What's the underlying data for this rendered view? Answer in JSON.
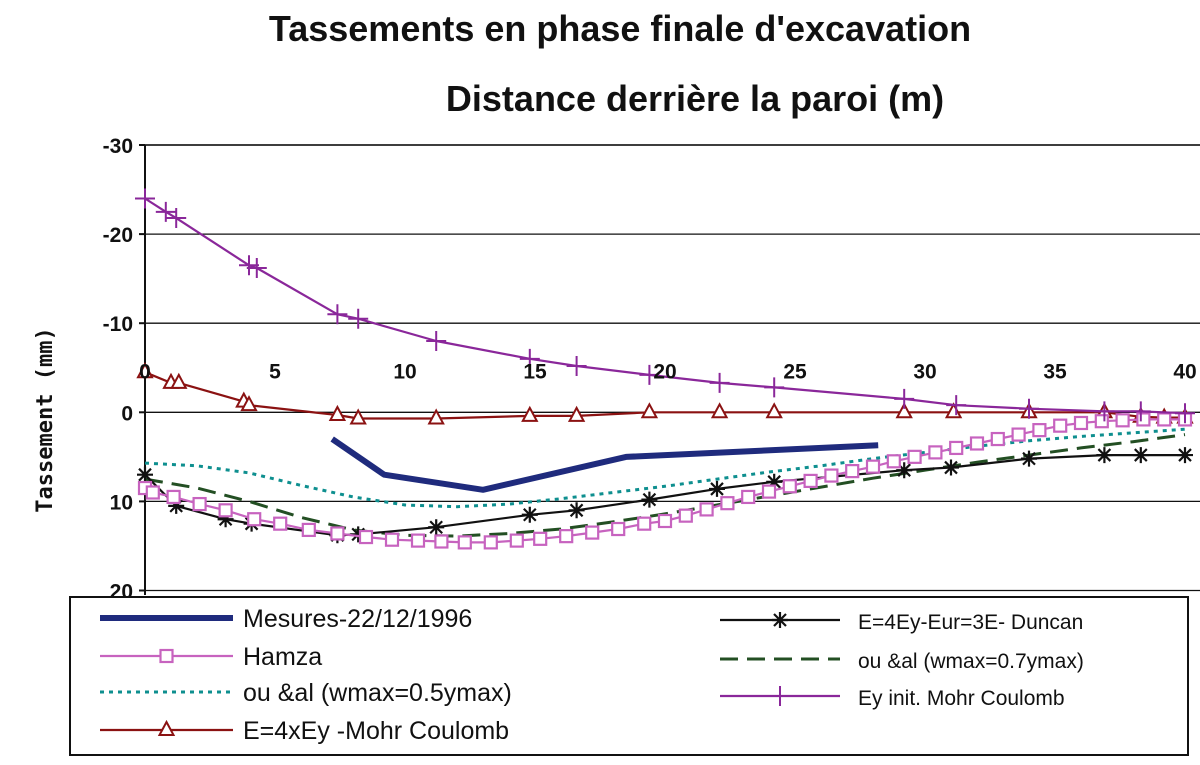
{
  "chart_data": {
    "type": "line",
    "title": "Tassements en phase finale  d'excavation",
    "subtitle": "Distance derrière la paroi (m)",
    "xlabel": "Distance derrière la paroi (m)",
    "ylabel": "Tassement (mm)",
    "xlim": [
      0,
      40
    ],
    "ylim": [
      -30,
      20
    ],
    "y_inverted": true,
    "x_ticks": [
      "0",
      "5",
      "10",
      "15",
      "20",
      "25",
      "30",
      "35",
      "40"
    ],
    "y_ticks": [
      "-30",
      "-20",
      "-10",
      "0",
      "10",
      "20"
    ],
    "grid": "horizontal",
    "legend_position": "bottom",
    "series": [
      {
        "name": "Mesures-22/12/1996",
        "color": "#1f2b7d",
        "style": "thick",
        "marker": "none",
        "points": [
          [
            7.2,
            3
          ],
          [
            9.2,
            7
          ],
          [
            13,
            8.7
          ],
          [
            18.5,
            5
          ],
          [
            28.2,
            3.7
          ]
        ]
      },
      {
        "name": "Hamza",
        "color": "#c763bf",
        "style": "solid",
        "marker": "square",
        "points": [
          [
            0,
            8.5
          ],
          [
            0.3,
            9
          ],
          [
            1.1,
            9.5
          ],
          [
            2.1,
            10.3
          ],
          [
            3.1,
            11
          ],
          [
            4.2,
            12
          ],
          [
            5.2,
            12.5
          ],
          [
            6.3,
            13.2
          ],
          [
            7.4,
            13.6
          ],
          [
            8.5,
            14
          ],
          [
            9.5,
            14.3
          ],
          [
            10.5,
            14.4
          ],
          [
            11.4,
            14.5
          ],
          [
            12.3,
            14.6
          ],
          [
            13.3,
            14.6
          ],
          [
            14.3,
            14.4
          ],
          [
            15.2,
            14.2
          ],
          [
            16.2,
            13.9
          ],
          [
            17.2,
            13.5
          ],
          [
            18.2,
            13.1
          ],
          [
            19.2,
            12.5
          ],
          [
            20,
            12.2
          ],
          [
            20.8,
            11.6
          ],
          [
            21.6,
            10.9
          ],
          [
            22.4,
            10.2
          ],
          [
            23.2,
            9.5
          ],
          [
            24,
            8.9
          ],
          [
            24.8,
            8.3
          ],
          [
            25.6,
            7.7
          ],
          [
            26.4,
            7.1
          ],
          [
            27.2,
            6.6
          ],
          [
            28,
            6.1
          ],
          [
            28.8,
            5.5
          ],
          [
            29.6,
            5
          ],
          [
            30.4,
            4.5
          ],
          [
            31.2,
            4
          ],
          [
            32,
            3.5
          ],
          [
            32.8,
            3
          ],
          [
            33.6,
            2.5
          ],
          [
            34.4,
            2
          ],
          [
            35.2,
            1.5
          ],
          [
            36,
            1.2
          ],
          [
            36.8,
            1
          ],
          [
            37.6,
            0.9
          ],
          [
            38.4,
            0.8
          ],
          [
            39.2,
            0.8
          ],
          [
            40,
            0.8
          ]
        ]
      },
      {
        "name": "ou &al (wmax=0.5ymax)",
        "color": "#0e8f8f",
        "style": "dotted",
        "marker": "none",
        "points": [
          [
            0,
            5.7
          ],
          [
            2,
            6
          ],
          [
            4,
            6.8
          ],
          [
            6,
            8.2
          ],
          [
            8,
            9.5
          ],
          [
            10,
            10.4
          ],
          [
            12,
            10.6
          ],
          [
            14,
            10.3
          ],
          [
            16,
            9.7
          ],
          [
            18,
            9
          ],
          [
            20,
            8.3
          ],
          [
            22,
            7.5
          ],
          [
            24,
            6.7
          ],
          [
            26,
            6
          ],
          [
            28,
            5.2
          ],
          [
            30,
            4.5
          ],
          [
            32,
            3.8
          ],
          [
            34,
            3.2
          ],
          [
            36,
            2.7
          ],
          [
            38,
            2.3
          ],
          [
            40,
            1.9
          ]
        ]
      },
      {
        "name": "E=4xEy -Mohr Coulomb",
        "color": "#8b1212",
        "style": "solid",
        "marker": "triangle",
        "points": [
          [
            0,
            -4.5
          ],
          [
            1,
            -3.3
          ],
          [
            1.3,
            -3.3
          ],
          [
            3.8,
            -1.2
          ],
          [
            4,
            -0.8
          ],
          [
            7.4,
            0.3
          ],
          [
            8.2,
            0.7
          ],
          [
            11.2,
            0.7
          ],
          [
            14.8,
            0.4
          ],
          [
            16.6,
            0.4
          ],
          [
            19.4,
            0
          ],
          [
            22.1,
            0
          ],
          [
            24.2,
            0
          ],
          [
            29.2,
            0
          ],
          [
            31.1,
            0
          ],
          [
            34,
            0
          ],
          [
            36.9,
            0
          ],
          [
            38.3,
            0.5
          ],
          [
            39.2,
            0.6
          ],
          [
            40,
            0.6
          ]
        ]
      },
      {
        "name": "E=4Ey-Eur=3E- Duncan",
        "color": "#111111",
        "style": "solid",
        "marker": "star",
        "points": [
          [
            0,
            7
          ],
          [
            1.2,
            10.5
          ],
          [
            3.1,
            12
          ],
          [
            4.1,
            12.5
          ],
          [
            7.4,
            13.8
          ],
          [
            8.2,
            13.7
          ],
          [
            11.2,
            12.9
          ],
          [
            14.8,
            11.5
          ],
          [
            16.6,
            11
          ],
          [
            19.4,
            9.8
          ],
          [
            22,
            8.6
          ],
          [
            24.2,
            7.8
          ],
          [
            29.2,
            6.5
          ],
          [
            31,
            6.2
          ],
          [
            34,
            5.2
          ],
          [
            36.9,
            4.8
          ],
          [
            38.3,
            4.8
          ],
          [
            40,
            4.8
          ]
        ]
      },
      {
        "name": "ou &al (wmax=0.7ymax)",
        "color": "#234f23",
        "style": "dashed",
        "marker": "none",
        "points": [
          [
            0,
            7.5
          ],
          [
            2,
            8.5
          ],
          [
            4,
            10
          ],
          [
            6,
            11.8
          ],
          [
            8,
            13.2
          ],
          [
            10,
            13.8
          ],
          [
            12,
            13.9
          ],
          [
            14,
            13.6
          ],
          [
            16,
            13.1
          ],
          [
            18,
            12.3
          ],
          [
            20,
            11.4
          ],
          [
            22,
            10.4
          ],
          [
            24,
            9.4
          ],
          [
            26,
            8.4
          ],
          [
            28,
            7.4
          ],
          [
            30,
            6.5
          ],
          [
            32,
            5.6
          ],
          [
            34,
            4.8
          ],
          [
            36,
            4
          ],
          [
            38,
            3.3
          ],
          [
            40,
            2.5
          ]
        ]
      },
      {
        "name": "Ey init. Mohr Coulomb",
        "color": "#8a279a",
        "style": "solid",
        "marker": "tick",
        "points": [
          [
            0,
            -24
          ],
          [
            0.8,
            -22.5
          ],
          [
            1.2,
            -21.8
          ],
          [
            4,
            -16.5
          ],
          [
            4.3,
            -16.2
          ],
          [
            7.4,
            -11
          ],
          [
            8.2,
            -10.5
          ],
          [
            11.2,
            -8
          ],
          [
            14.8,
            -6
          ],
          [
            16.6,
            -5.2
          ],
          [
            19.4,
            -4.2
          ],
          [
            22.1,
            -3.3
          ],
          [
            24.2,
            -2.8
          ],
          [
            29.2,
            -1.5
          ],
          [
            31.2,
            -0.8
          ],
          [
            34,
            -0.4
          ],
          [
            36.9,
            -0.1
          ],
          [
            38.3,
            -0.1
          ],
          [
            40,
            0.1
          ]
        ]
      }
    ]
  }
}
